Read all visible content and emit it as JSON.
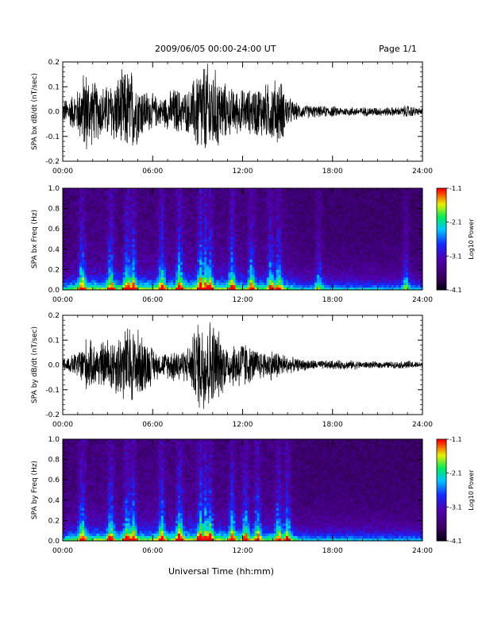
{
  "header": {
    "title": "2009/06/05  00:00-24:00 UT",
    "page": "Page 1/1"
  },
  "footer": {
    "xlabel": "Universal Time (hh:mm)"
  },
  "chart_data": [
    {
      "type": "line",
      "ylabel": "SPA bx dB/dt (nT/sec)",
      "xlim": [
        0,
        24
      ],
      "ylim": [
        -0.2,
        0.2
      ],
      "xticks": [
        "00:00",
        "06:00",
        "12:00",
        "18:00",
        "24:00"
      ],
      "yticks": [
        "-0.2",
        "-0.1",
        "0.0",
        "0.1",
        "0.2"
      ],
      "series": [
        {
          "x": [
            0.0,
            0.5,
            1.0,
            1.5,
            2.0,
            2.5,
            3.0,
            3.5,
            4.0,
            4.5,
            5.0,
            5.5,
            6.0,
            6.5,
            7.0,
            7.5,
            8.0,
            8.5,
            9.0,
            9.5,
            10.0,
            10.5,
            11.0,
            11.5,
            12.0,
            12.5,
            13.0,
            13.5,
            14.0,
            14.5,
            15.0,
            15.5,
            16.0,
            16.5,
            17.0,
            17.5,
            18.0,
            18.5,
            19.0,
            19.5,
            20.0,
            20.5,
            21.0,
            21.5,
            22.0,
            22.5,
            23.0,
            23.5,
            24.0
          ],
          "envelope": [
            0.05,
            0.07,
            0.1,
            0.2,
            0.14,
            0.12,
            0.12,
            0.15,
            0.18,
            0.2,
            0.14,
            0.1,
            0.08,
            0.06,
            0.08,
            0.11,
            0.09,
            0.1,
            0.2,
            0.22,
            0.2,
            0.16,
            0.11,
            0.1,
            0.1,
            0.1,
            0.12,
            0.12,
            0.14,
            0.15,
            0.07,
            0.04,
            0.03,
            0.03,
            0.025,
            0.025,
            0.025,
            0.02,
            0.02,
            0.02,
            0.02,
            0.02,
            0.02,
            0.02,
            0.02,
            0.02,
            0.03,
            0.02,
            0.015
          ]
        }
      ]
    },
    {
      "type": "heatmap",
      "ylabel": "SPA bx Freq (Hz)",
      "xlim": [
        0,
        24
      ],
      "ylim": [
        0.0,
        1.0
      ],
      "xticks": [
        "00:00",
        "06:00",
        "12:00",
        "18:00",
        "24:00"
      ],
      "yticks": [
        "0.0",
        "0.2",
        "0.4",
        "0.6",
        "0.8",
        "1.0"
      ],
      "colorbar": {
        "label": "Log10 Power",
        "ticks": [
          "-1.1",
          "-2.1",
          "-3.1",
          "-4.1"
        ],
        "range": [
          -4.1,
          -1.1
        ]
      },
      "bursts": [
        1.3,
        3.2,
        4.3,
        4.7,
        6.6,
        7.8,
        9.2,
        9.5,
        9.8,
        11.3,
        12.6,
        13.9,
        14.4,
        17.1,
        22.9
      ]
    },
    {
      "type": "line",
      "ylabel": "SPA by dB/dt (nT/sec)",
      "xlim": [
        0,
        24
      ],
      "ylim": [
        -0.2,
        0.2
      ],
      "xticks": [
        "00:00",
        "06:00",
        "12:00",
        "18:00",
        "24:00"
      ],
      "yticks": [
        "-0.2",
        "-0.1",
        "0.0",
        "0.1",
        "0.2"
      ],
      "series": [
        {
          "x": [
            0.0,
            0.5,
            1.0,
            1.5,
            2.0,
            2.5,
            3.0,
            3.5,
            4.0,
            4.5,
            5.0,
            5.5,
            6.0,
            6.5,
            7.0,
            7.5,
            8.0,
            8.5,
            9.0,
            9.5,
            10.0,
            10.5,
            11.0,
            11.5,
            12.0,
            12.5,
            13.0,
            13.5,
            14.0,
            14.5,
            15.0,
            15.5,
            16.0,
            16.5,
            17.0,
            17.5,
            18.0,
            18.5,
            19.0,
            19.5,
            20.0,
            20.5,
            21.0,
            21.5,
            22.0,
            22.5,
            23.0,
            23.5,
            24.0
          ],
          "envelope": [
            0.03,
            0.04,
            0.06,
            0.12,
            0.1,
            0.1,
            0.12,
            0.13,
            0.16,
            0.18,
            0.16,
            0.12,
            0.08,
            0.05,
            0.06,
            0.08,
            0.07,
            0.09,
            0.2,
            0.22,
            0.2,
            0.14,
            0.09,
            0.1,
            0.12,
            0.08,
            0.07,
            0.06,
            0.07,
            0.06,
            0.04,
            0.03,
            0.025,
            0.025,
            0.02,
            0.02,
            0.02,
            0.02,
            0.02,
            0.02,
            0.015,
            0.015,
            0.015,
            0.015,
            0.015,
            0.015,
            0.02,
            0.015,
            0.015
          ]
        }
      ]
    },
    {
      "type": "heatmap",
      "ylabel": "SPA by Freq (Hz)",
      "xlim": [
        0,
        24
      ],
      "ylim": [
        0.0,
        1.0
      ],
      "xticks": [
        "00:00",
        "06:00",
        "12:00",
        "18:00",
        "24:00"
      ],
      "yticks": [
        "0.0",
        "0.2",
        "0.4",
        "0.6",
        "0.8",
        "1.0"
      ],
      "colorbar": {
        "label": "Log10 Power",
        "ticks": [
          "-1.1",
          "-2.1",
          "-3.1",
          "-4.1"
        ],
        "range": [
          -4.1,
          -1.1
        ]
      },
      "bursts": [
        1.3,
        3.2,
        4.3,
        4.7,
        6.6,
        7.8,
        9.2,
        9.5,
        9.8,
        11.3,
        12.2,
        13.0,
        14.4,
        15.0
      ]
    }
  ]
}
